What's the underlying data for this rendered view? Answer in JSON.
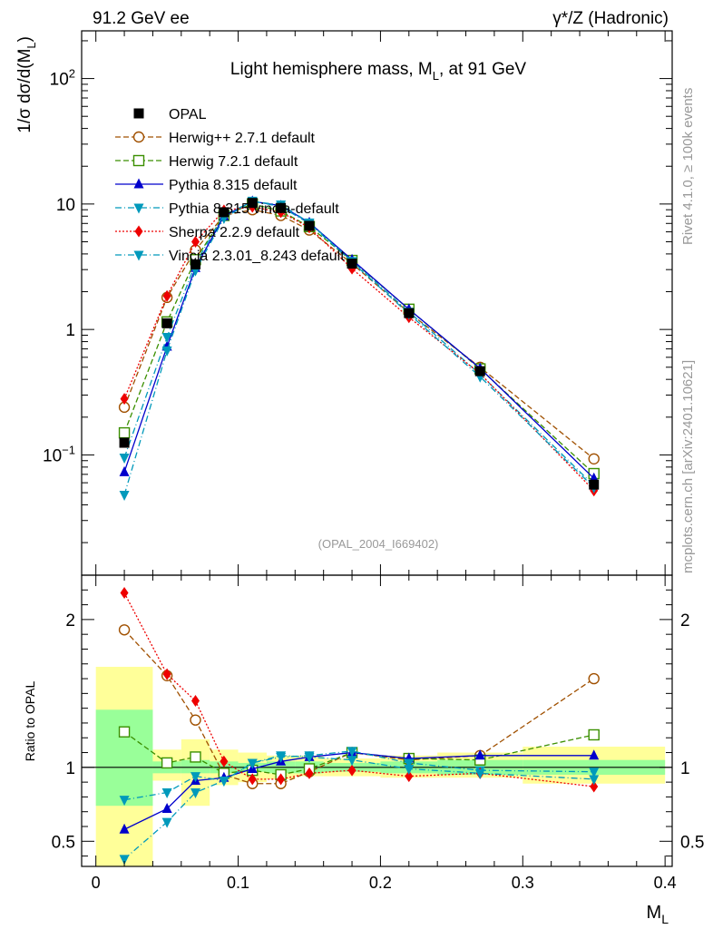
{
  "header": {
    "left": "91.2 GeV ee",
    "right": "γ*/Z (Hadronic)"
  },
  "side_labels": {
    "rivet": "Rivet 4.1.0, ≥ 100k events",
    "mcplots": "mcplots.cern.ch [arXiv:2401.10621]"
  },
  "watermark": "(OPAL_2004_I669402)",
  "chart_data": {
    "type": "line",
    "title": "Light hemisphere mass, M_L, at 91 GeV",
    "title_parts": {
      "pre": "Light hemisphere mass, M",
      "sub": "L",
      "post": ", at 91 GeV"
    },
    "xlabel": "M_L",
    "xlabel_parts": {
      "main": "M",
      "sub": "L"
    },
    "ylabel": "1/σ dσ/d(M_L)",
    "ylabel_parts": {
      "pre": "1/σ   dσ/d(M",
      "sub": "L",
      "post": ")"
    },
    "ratio_ylabel": "Ratio to OPAL",
    "xlim": [
      -0.01,
      0.405
    ],
    "ylim": [
      0.011,
      240
    ],
    "ratio_ylim": [
      0.33,
      2.3
    ],
    "yscale": "log",
    "x_ticks": [
      {
        "value": 0,
        "label": "0"
      },
      {
        "value": 0.1,
        "label": "0.1"
      },
      {
        "value": 0.2,
        "label": "0.2"
      },
      {
        "value": 0.3,
        "label": "0.3"
      },
      {
        "value": 0.4,
        "label": "0.4"
      }
    ],
    "y_ticks": [
      {
        "value": 0.1,
        "label_base": "10",
        "label_exp": "−1"
      },
      {
        "value": 1,
        "label_base": "1",
        "label_exp": ""
      },
      {
        "value": 10,
        "label_base": "10",
        "label_exp": ""
      },
      {
        "value": 100,
        "label_base": "10",
        "label_exp": "2"
      }
    ],
    "ratio_ticks": [
      {
        "value": 0.5,
        "label": "0.5"
      },
      {
        "value": 1,
        "label": "1"
      },
      {
        "value": 2,
        "label": "2"
      }
    ],
    "bin_edges": [
      0,
      0.04,
      0.06,
      0.08,
      0.1,
      0.12,
      0.14,
      0.16,
      0.2,
      0.24,
      0.3,
      0.4
    ],
    "x": [
      0.02,
      0.05,
      0.07,
      0.09,
      0.11,
      0.13,
      0.15,
      0.18,
      0.22,
      0.27,
      0.35
    ],
    "data": {
      "name": "OPAL",
      "values": [
        0.125,
        1.12,
        3.3,
        8.6,
        10.2,
        9.3,
        6.7,
        3.35,
        1.35,
        0.465,
        0.058
      ]
    },
    "uncertainty_band": {
      "inner": [
        [
          0.74,
          1.39
        ],
        [
          0.96,
          1.04
        ],
        [
          0.96,
          1.05
        ],
        [
          0.96,
          1.04
        ],
        [
          0.97,
          1.03
        ],
        [
          0.96,
          1.04
        ],
        [
          0.96,
          1.04
        ],
        [
          0.97,
          1.03
        ],
        [
          0.96,
          1.04
        ],
        [
          0.95,
          1.05
        ],
        [
          0.95,
          1.05
        ]
      ],
      "outer": [
        [
          0.33,
          1.68
        ],
        [
          0.91,
          1.12
        ],
        [
          0.74,
          1.19
        ],
        [
          0.88,
          1.12
        ],
        [
          0.9,
          1.1
        ],
        [
          0.92,
          1.08
        ],
        [
          0.94,
          1.08
        ],
        [
          0.94,
          1.06
        ],
        [
          0.93,
          1.08
        ],
        [
          0.93,
          1.1
        ],
        [
          0.89,
          1.14
        ]
      ]
    },
    "series": [
      {
        "name": "Herwig++ 2.7.1 default",
        "color": "#a05000",
        "dash": "6,3",
        "marker": "circle-open",
        "values": [
          0.24,
          1.8,
          4.3,
          8.1,
          9.0,
          8.1,
          6.2,
          3.35,
          1.36,
          0.5,
          0.093
        ],
        "ratio": [
          1.93,
          1.62,
          1.32,
          0.95,
          0.89,
          0.89,
          0.97,
          1.1,
          1.05,
          1.08,
          1.6
        ]
      },
      {
        "name": "Herwig 7.2.1 default",
        "color": "#3a8f00",
        "dash": "6,3",
        "marker": "square-open",
        "values": [
          0.15,
          1.15,
          3.6,
          8.1,
          10.0,
          8.8,
          6.6,
          3.55,
          1.45,
          0.485,
          0.071
        ],
        "ratio": [
          1.24,
          1.03,
          1.07,
          0.96,
          0.98,
          0.95,
          0.99,
          1.1,
          1.06,
          1.05,
          1.22
        ]
      },
      {
        "name": "Pythia 8.315 default",
        "color": "#0000cc",
        "dash": "",
        "marker": "triangle-up",
        "values": [
          0.073,
          0.73,
          3.1,
          8.0,
          10.5,
          9.7,
          7.1,
          3.6,
          1.45,
          0.49,
          0.065
        ],
        "ratio": [
          0.58,
          0.72,
          0.91,
          0.93,
          0.99,
          1.04,
          1.07,
          1.1,
          1.06,
          1.08,
          1.08
        ]
      },
      {
        "name": "Pythia 8.315 vincia-default",
        "color": "#0099bb",
        "dash": "7,3,1,3",
        "marker": "triangle-down",
        "values": [
          0.095,
          0.87,
          3.35,
          8.2,
          10.4,
          9.9,
          7.1,
          3.5,
          1.38,
          0.44,
          0.057
        ],
        "ratio": [
          0.78,
          0.83,
          0.94,
          0.91,
          1.03,
          1.07,
          1.08,
          1.11,
          1.03,
          0.98,
          0.97
        ]
      },
      {
        "name": "Sherpa 2.2.9 default",
        "color": "#ee0000",
        "dash": "2,2",
        "marker": "diamond",
        "values": [
          0.28,
          1.85,
          5.0,
          8.9,
          9.5,
          8.6,
          6.5,
          3.05,
          1.25,
          0.445,
          0.052
        ],
        "ratio": [
          2.18,
          1.63,
          1.45,
          1.04,
          0.92,
          0.92,
          0.96,
          0.98,
          0.94,
          0.96,
          0.87
        ]
      },
      {
        "name": "Vincia 2.3.01_8.243 default",
        "color": "#0099bb",
        "dash": "7,3,1,3",
        "marker": "triangle-down",
        "values": [
          0.048,
          0.68,
          2.95,
          7.7,
          10.6,
          9.5,
          7.0,
          3.45,
          1.33,
          0.42,
          0.055
        ],
        "ratio": [
          0.38,
          0.63,
          0.83,
          0.91,
          1.03,
          1.08,
          1.07,
          1.05,
          0.99,
          0.96,
          0.92
        ]
      }
    ]
  }
}
